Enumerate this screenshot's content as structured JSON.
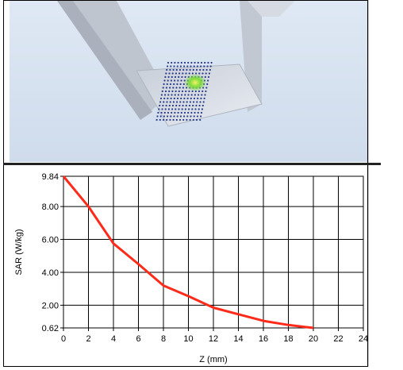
{
  "chart_data": {
    "type": "line",
    "xlabel": "Z (mm)",
    "ylabel": "SAR (W/kg)",
    "xlim": [
      0,
      24
    ],
    "ylim": [
      0.62,
      9.84
    ],
    "x_ticks": [
      "0",
      "2",
      "4",
      "6",
      "8",
      "10",
      "12",
      "14",
      "16",
      "18",
      "20",
      "22",
      "24"
    ],
    "y_ticks": [
      {
        "value": 9.84,
        "label": "9.84"
      },
      {
        "value": 8.0,
        "label": "8.00"
      },
      {
        "value": 6.0,
        "label": "6.00"
      },
      {
        "value": 4.0,
        "label": "4.00"
      },
      {
        "value": 2.0,
        "label": "2.00"
      },
      {
        "value": 0.62,
        "label": "0.62"
      }
    ],
    "grid": true,
    "series": [
      {
        "color": "#ff2a1a",
        "x": [
          0,
          2,
          4,
          6,
          8,
          10,
          12,
          14,
          16,
          18,
          20
        ],
        "y": [
          9.84,
          8.0,
          5.75,
          4.5,
          3.2,
          2.55,
          1.85,
          1.45,
          1.05,
          0.8,
          0.62
        ]
      }
    ]
  },
  "colors": {
    "background": "#ffffff",
    "scene_background": "#d7e2f0",
    "grid": "#000000",
    "measurement_dots": "#2a3a8c",
    "hotspot": "#7ddc3a"
  }
}
